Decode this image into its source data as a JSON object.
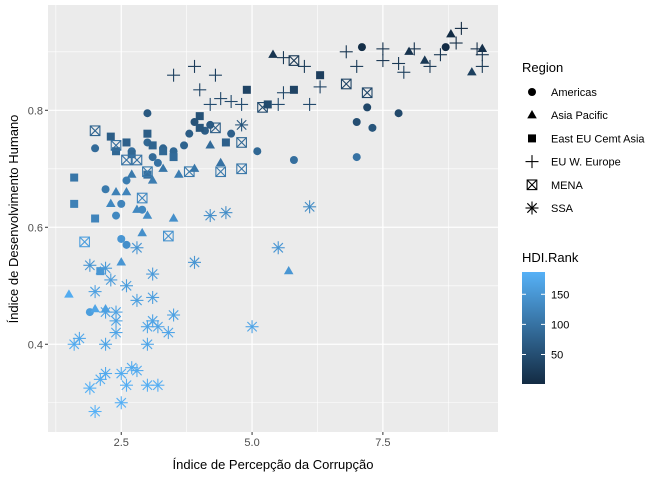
{
  "chart_data": {
    "type": "scatter",
    "title": "",
    "xlabel": "Índice de Percepção da Corrupção",
    "ylabel": "Índice de Desenvolvimento Humano",
    "xlim": [
      1.1,
      9.7
    ],
    "ylim": [
      0.25,
      0.98
    ],
    "x_ticks": [
      2.5,
      5.0,
      7.5
    ],
    "x_tick_labels": [
      "2.5",
      "5.0",
      "7.5"
    ],
    "y_ticks": [
      0.4,
      0.6,
      0.8
    ],
    "y_tick_labels": [
      "0.4",
      "0.6",
      "0.8"
    ],
    "grid": true,
    "shape_legend": {
      "title": "Region",
      "position": "right",
      "entries": [
        {
          "name": "Americas",
          "shape": "circle"
        },
        {
          "name": "Asia Pacific",
          "shape": "triangle"
        },
        {
          "name": "East EU Cemt Asia",
          "shape": "square"
        },
        {
          "name": "EU W. Europe",
          "shape": "plus"
        },
        {
          "name": "MENA",
          "shape": "boxcross"
        },
        {
          "name": "SSA",
          "shape": "asterisk"
        }
      ]
    },
    "color_legend": {
      "title": "HDI.Rank",
      "position": "right",
      "min": 1,
      "max": 187,
      "breaks": [
        50,
        100,
        150
      ],
      "break_labels": [
        "50",
        "100",
        "150"
      ],
      "low_color": "#132B43",
      "high_color": "#56B1F7"
    },
    "series": [
      {
        "name": "Americas",
        "shape": "circle",
        "points": [
          [
            1.9,
            0.455,
            160
          ],
          [
            2.0,
            0.735,
            90
          ],
          [
            2.2,
            0.665,
            110
          ],
          [
            2.4,
            0.62,
            130
          ],
          [
            2.5,
            0.58,
            150
          ],
          [
            2.6,
            0.57,
            140
          ],
          [
            2.5,
            0.64,
            125
          ],
          [
            2.6,
            0.68,
            115
          ],
          [
            2.7,
            0.73,
            95
          ],
          [
            2.9,
            0.63,
            130
          ],
          [
            3.0,
            0.795,
            65
          ],
          [
            3.0,
            0.745,
            85
          ],
          [
            3.1,
            0.72,
            90
          ],
          [
            3.2,
            0.71,
            100
          ],
          [
            3.3,
            0.735,
            80
          ],
          [
            3.5,
            0.73,
            85
          ],
          [
            3.7,
            0.74,
            80
          ],
          [
            3.8,
            0.76,
            70
          ],
          [
            3.9,
            0.78,
            55
          ],
          [
            4.1,
            0.765,
            70
          ],
          [
            4.2,
            0.775,
            65
          ],
          [
            4.6,
            0.76,
            75
          ],
          [
            5.1,
            0.73,
            85
          ],
          [
            5.8,
            0.715,
            95
          ],
          [
            7.0,
            0.78,
            50
          ],
          [
            7.0,
            0.72,
            100
          ],
          [
            7.2,
            0.805,
            40
          ],
          [
            7.3,
            0.77,
            60
          ],
          [
            7.8,
            0.795,
            42
          ],
          [
            7.1,
            0.908,
            5
          ],
          [
            8.7,
            0.908,
            4
          ]
        ]
      },
      {
        "name": "Asia Pacific",
        "shape": "triangle",
        "points": [
          [
            1.5,
            0.485,
            180
          ],
          [
            2.0,
            0.46,
            170
          ],
          [
            2.1,
            0.525,
            160
          ],
          [
            2.2,
            0.46,
            165
          ],
          [
            2.3,
            0.64,
            130
          ],
          [
            2.4,
            0.66,
            120
          ],
          [
            2.5,
            0.54,
            150
          ],
          [
            2.6,
            0.66,
            125
          ],
          [
            2.7,
            0.69,
            110
          ],
          [
            2.8,
            0.63,
            130
          ],
          [
            2.9,
            0.59,
            140
          ],
          [
            3.0,
            0.62,
            135
          ],
          [
            3.1,
            0.68,
            115
          ],
          [
            3.3,
            0.7,
            105
          ],
          [
            3.5,
            0.615,
            140
          ],
          [
            3.6,
            0.69,
            115
          ],
          [
            3.9,
            0.7,
            105
          ],
          [
            4.2,
            0.74,
            90
          ],
          [
            4.4,
            0.71,
            100
          ],
          [
            5.7,
            0.525,
            150
          ],
          [
            5.4,
            0.895,
            15
          ],
          [
            8.0,
            0.9,
            12
          ],
          [
            8.3,
            0.885,
            20
          ],
          [
            8.8,
            0.93,
            2
          ],
          [
            9.2,
            0.865,
            30
          ],
          [
            9.4,
            0.905,
            8
          ]
        ]
      },
      {
        "name": "East EU Cemt Asia",
        "shape": "square",
        "points": [
          [
            1.6,
            0.685,
            105
          ],
          [
            1.6,
            0.64,
            120
          ],
          [
            2.0,
            0.615,
            125
          ],
          [
            2.1,
            0.525,
            150
          ],
          [
            2.3,
            0.755,
            70
          ],
          [
            2.4,
            0.73,
            85
          ],
          [
            2.6,
            0.745,
            75
          ],
          [
            2.7,
            0.725,
            85
          ],
          [
            3.0,
            0.69,
            95
          ],
          [
            3.0,
            0.76,
            70
          ],
          [
            3.1,
            0.74,
            80
          ],
          [
            3.3,
            0.73,
            85
          ],
          [
            3.5,
            0.72,
            90
          ],
          [
            4.0,
            0.79,
            55
          ],
          [
            4.0,
            0.77,
            60
          ],
          [
            4.5,
            0.745,
            75
          ],
          [
            4.9,
            0.835,
            35
          ],
          [
            5.3,
            0.81,
            45
          ],
          [
            5.8,
            0.835,
            35
          ],
          [
            6.3,
            0.86,
            28
          ]
        ]
      },
      {
        "name": "EU W. Europe",
        "shape": "plus",
        "points": [
          [
            3.5,
            0.86,
            30
          ],
          [
            3.9,
            0.875,
            25
          ],
          [
            4.0,
            0.835,
            35
          ],
          [
            4.3,
            0.86,
            30
          ],
          [
            4.2,
            0.81,
            45
          ],
          [
            4.4,
            0.82,
            40
          ],
          [
            4.6,
            0.815,
            42
          ],
          [
            4.8,
            0.81,
            44
          ],
          [
            5.5,
            0.81,
            45
          ],
          [
            5.6,
            0.83,
            38
          ],
          [
            5.6,
            0.89,
            20
          ],
          [
            6.0,
            0.875,
            24
          ],
          [
            6.1,
            0.81,
            43
          ],
          [
            6.3,
            0.84,
            35
          ],
          [
            6.8,
            0.9,
            16
          ],
          [
            7.0,
            0.875,
            24
          ],
          [
            7.5,
            0.905,
            12
          ],
          [
            7.5,
            0.885,
            18
          ],
          [
            7.8,
            0.88,
            19
          ],
          [
            7.9,
            0.865,
            27
          ],
          [
            8.1,
            0.905,
            10
          ],
          [
            8.4,
            0.875,
            22
          ],
          [
            8.6,
            0.895,
            18
          ],
          [
            8.9,
            0.915,
            6
          ],
          [
            9.0,
            0.94,
            1
          ],
          [
            9.3,
            0.905,
            8
          ],
          [
            9.4,
            0.875,
            20
          ],
          [
            9.4,
            0.895,
            12
          ]
        ]
      },
      {
        "name": "MENA",
        "shape": "boxcross",
        "points": [
          [
            1.8,
            0.575,
            160
          ],
          [
            2.0,
            0.765,
            80
          ],
          [
            2.4,
            0.74,
            95
          ],
          [
            2.6,
            0.715,
            100
          ],
          [
            2.8,
            0.715,
            100
          ],
          [
            3.0,
            0.695,
            110
          ],
          [
            2.9,
            0.65,
            130
          ],
          [
            3.4,
            0.585,
            145
          ],
          [
            3.8,
            0.695,
            110
          ],
          [
            4.3,
            0.77,
            70
          ],
          [
            4.4,
            0.695,
            110
          ],
          [
            4.8,
            0.7,
            105
          ],
          [
            4.8,
            0.745,
            85
          ],
          [
            5.2,
            0.805,
            45
          ],
          [
            5.8,
            0.885,
            20
          ],
          [
            6.8,
            0.845,
            35
          ],
          [
            7.2,
            0.83,
            40
          ]
        ]
      },
      {
        "name": "SSA",
        "shape": "asterisk",
        "points": [
          [
            1.6,
            0.4,
            180
          ],
          [
            1.7,
            0.41,
            175
          ],
          [
            1.9,
            0.325,
            185
          ],
          [
            1.9,
            0.535,
            150
          ],
          [
            2.0,
            0.285,
            187
          ],
          [
            2.0,
            0.49,
            165
          ],
          [
            2.1,
            0.34,
            180
          ],
          [
            2.2,
            0.35,
            178
          ],
          [
            2.2,
            0.4,
            170
          ],
          [
            2.2,
            0.455,
            165
          ],
          [
            2.2,
            0.53,
            155
          ],
          [
            2.3,
            0.51,
            158
          ],
          [
            2.4,
            0.44,
            168
          ],
          [
            2.4,
            0.455,
            166
          ],
          [
            2.4,
            0.42,
            170
          ],
          [
            2.5,
            0.3,
            186
          ],
          [
            2.5,
            0.35,
            180
          ],
          [
            2.6,
            0.33,
            183
          ],
          [
            2.6,
            0.5,
            160
          ],
          [
            2.7,
            0.36,
            178
          ],
          [
            2.8,
            0.355,
            179
          ],
          [
            2.8,
            0.475,
            163
          ],
          [
            3.0,
            0.33,
            183
          ],
          [
            3.0,
            0.4,
            172
          ],
          [
            3.0,
            0.43,
            170
          ],
          [
            3.1,
            0.44,
            168
          ],
          [
            3.1,
            0.48,
            162
          ],
          [
            3.1,
            0.52,
            157
          ],
          [
            3.2,
            0.43,
            170
          ],
          [
            3.2,
            0.33,
            183
          ],
          [
            3.4,
            0.42,
            171
          ],
          [
            3.5,
            0.45,
            166
          ],
          [
            3.9,
            0.54,
            150
          ],
          [
            4.2,
            0.62,
            140
          ],
          [
            4.5,
            0.625,
            138
          ],
          [
            4.8,
            0.775,
            60
          ],
          [
            5.0,
            0.43,
            170
          ],
          [
            5.5,
            0.565,
            150
          ],
          [
            6.1,
            0.635,
            135
          ],
          [
            2.8,
            0.565,
            150
          ]
        ]
      }
    ]
  }
}
